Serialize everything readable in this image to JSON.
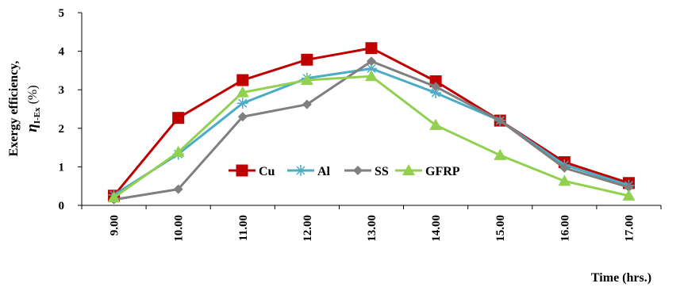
{
  "chart_data": {
    "type": "line",
    "x": [
      "9.00",
      "10.00",
      "11.00",
      "12.00",
      "13.00",
      "14.00",
      "15.00",
      "16.00",
      "17.00"
    ],
    "xlabel": "Time (hrs.)",
    "ylabel_line1": "Exergy efficiency,",
    "ylabel_symbol": "η",
    "ylabel_subscript": "I-Ex",
    "ylabel_unit": " (%)",
    "ylim": [
      0,
      5
    ],
    "yticks": [
      "0",
      "1",
      "2",
      "3",
      "4",
      "5"
    ],
    "grid": false,
    "legend_position": "center",
    "series": [
      {
        "name": "Cu",
        "color": "#C00000",
        "marker": "square",
        "values": [
          0.25,
          2.27,
          3.25,
          3.78,
          4.08,
          3.22,
          2.2,
          1.12,
          0.58
        ]
      },
      {
        "name": "Al",
        "color": "#4BACC6",
        "marker": "asterisk",
        "values": [
          0.27,
          1.33,
          2.65,
          3.3,
          3.55,
          2.92,
          2.2,
          1.05,
          0.52
        ]
      },
      {
        "name": "SS",
        "color": "#7F7F7F",
        "marker": "diamond",
        "values": [
          0.15,
          0.42,
          2.3,
          2.62,
          3.74,
          3.08,
          2.2,
          0.97,
          0.47
        ]
      },
      {
        "name": "GFRP",
        "color": "#92D050",
        "marker": "triangle",
        "values": [
          0.2,
          1.38,
          2.93,
          3.25,
          3.35,
          2.08,
          1.3,
          0.63,
          0.25
        ]
      }
    ]
  }
}
